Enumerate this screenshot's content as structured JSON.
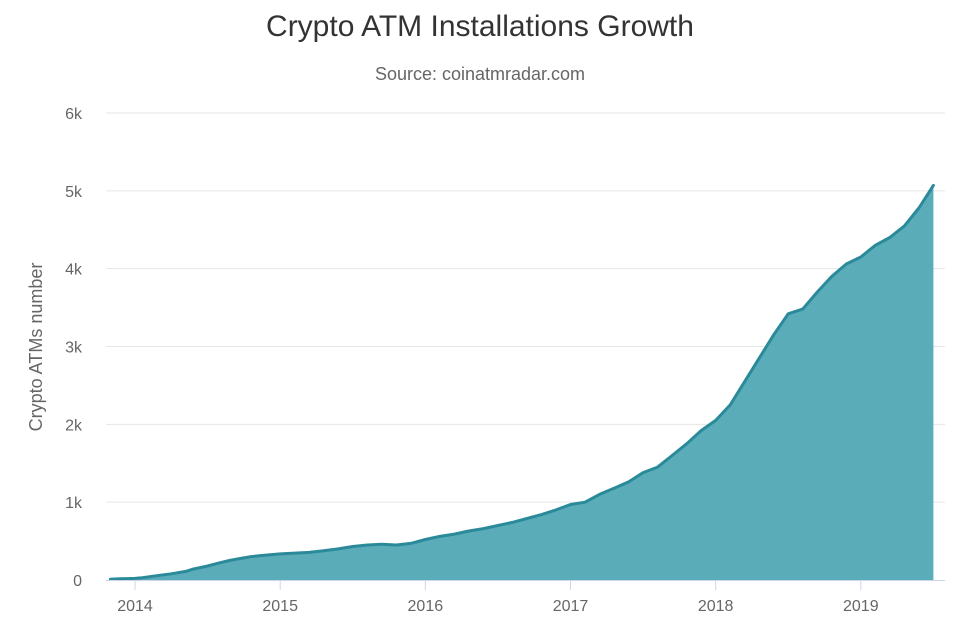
{
  "chart_data": {
    "type": "area",
    "title": "Crypto ATM Installations Growth",
    "subtitle": "Source: coinatmradar.com",
    "xlabel": "",
    "ylabel": "Crypto ATMs number",
    "xlim": [
      2013.8,
      2019.58
    ],
    "ylim": [
      0,
      6000
    ],
    "y_ticks": [
      {
        "value": 0,
        "label": "0"
      },
      {
        "value": 1000,
        "label": "1k"
      },
      {
        "value": 2000,
        "label": "2k"
      },
      {
        "value": 3000,
        "label": "3k"
      },
      {
        "value": 4000,
        "label": "4k"
      },
      {
        "value": 5000,
        "label": "5k"
      },
      {
        "value": 6000,
        "label": "6k"
      }
    ],
    "x_ticks": [
      {
        "value": 2014,
        "label": "2014"
      },
      {
        "value": 2015,
        "label": "2015"
      },
      {
        "value": 2016,
        "label": "2016"
      },
      {
        "value": 2017,
        "label": "2017"
      },
      {
        "value": 2018,
        "label": "2018"
      },
      {
        "value": 2019,
        "label": "2019"
      }
    ],
    "grid": true,
    "legend": "none",
    "colors": {
      "fill": "#5aacb8",
      "line": "#2b8a99",
      "grid": "#e6e6e6",
      "axis": "#ccd6eb"
    },
    "series": [
      {
        "x": [
          2013.83,
          2013.9,
          2014.0,
          2014.05,
          2014.15,
          2014.25,
          2014.35,
          2014.4,
          2014.5,
          2014.58,
          2014.65,
          2014.72,
          2014.8,
          2014.9,
          2015.0,
          2015.1,
          2015.2,
          2015.3,
          2015.4,
          2015.5,
          2015.6,
          2015.7,
          2015.8,
          2015.9,
          2016.0,
          2016.1,
          2016.2,
          2016.3,
          2016.4,
          2016.5,
          2016.6,
          2016.7,
          2016.8,
          2016.9,
          2017.0,
          2017.1,
          2017.2,
          2017.3,
          2017.4,
          2017.5,
          2017.6,
          2017.7,
          2017.8,
          2017.9,
          2018.0,
          2018.1,
          2018.2,
          2018.3,
          2018.4,
          2018.5,
          2018.6,
          2018.7,
          2018.8,
          2018.9,
          2019.0,
          2019.1,
          2019.2,
          2019.3,
          2019.4,
          2019.5
        ],
        "y": [
          10,
          15,
          20,
          30,
          55,
          80,
          110,
          140,
          180,
          220,
          250,
          275,
          300,
          320,
          335,
          345,
          355,
          375,
          400,
          430,
          450,
          460,
          450,
          470,
          520,
          560,
          590,
          630,
          660,
          700,
          740,
          790,
          840,
          900,
          970,
          1000,
          1100,
          1180,
          1260,
          1380,
          1450,
          1600,
          1750,
          1920,
          2050,
          2250,
          2550,
          2850,
          3150,
          3420,
          3480,
          3700,
          3900,
          4060,
          4150,
          4300,
          4400,
          4550,
          4780,
          5070
        ]
      }
    ]
  }
}
